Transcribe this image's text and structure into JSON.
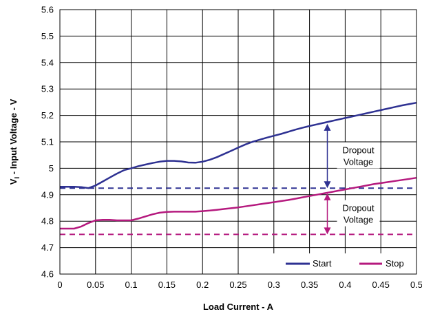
{
  "chart_data": {
    "type": "line",
    "xlabel": "Load Current - A",
    "ylabel_main": "V",
    "ylabel_sub": "I",
    "ylabel_rest": " - Input Voltage - V",
    "xlim": [
      0,
      0.5
    ],
    "ylim": [
      4.6,
      5.6
    ],
    "x_ticks": [
      "0",
      "0.05",
      "0.1",
      "0.15",
      "0.2",
      "0.25",
      "0.3",
      "0.35",
      "0.4",
      "0.45",
      "0.5"
    ],
    "y_ticks": [
      "4.6",
      "4.7",
      "4.8",
      "4.9",
      "5",
      "5.1",
      "5.2",
      "5.3",
      "5.4",
      "5.5",
      "5.6"
    ],
    "grid": true,
    "legend_position": "bottom-right",
    "series": [
      {
        "name": "Start",
        "color": "#2e3192",
        "x": [
          0,
          0.01,
          0.02,
          0.03,
          0.04,
          0.05,
          0.06,
          0.07,
          0.08,
          0.09,
          0.1,
          0.11,
          0.12,
          0.13,
          0.14,
          0.15,
          0.16,
          0.17,
          0.18,
          0.19,
          0.2,
          0.21,
          0.22,
          0.23,
          0.24,
          0.25,
          0.26,
          0.27,
          0.28,
          0.29,
          0.3,
          0.31,
          0.32,
          0.33,
          0.34,
          0.35,
          0.36,
          0.37,
          0.38,
          0.39,
          0.4,
          0.41,
          0.42,
          0.43,
          0.44,
          0.45,
          0.46,
          0.47,
          0.48,
          0.49,
          0.5
        ],
        "values": [
          4.93,
          4.93,
          4.93,
          4.929,
          4.925,
          4.935,
          4.95,
          4.965,
          4.98,
          4.993,
          5.0,
          5.008,
          5.014,
          5.02,
          5.025,
          5.028,
          5.028,
          5.026,
          5.022,
          5.021,
          5.025,
          5.032,
          5.042,
          5.054,
          5.066,
          5.078,
          5.09,
          5.1,
          5.108,
          5.116,
          5.123,
          5.13,
          5.138,
          5.146,
          5.153,
          5.16,
          5.166,
          5.172,
          5.178,
          5.184,
          5.19,
          5.196,
          5.202,
          5.208,
          5.214,
          5.22,
          5.226,
          5.232,
          5.238,
          5.243,
          5.248
        ]
      },
      {
        "name": "Stop",
        "color": "#b5197e",
        "x": [
          0,
          0.01,
          0.02,
          0.03,
          0.04,
          0.05,
          0.06,
          0.07,
          0.08,
          0.09,
          0.1,
          0.11,
          0.12,
          0.13,
          0.14,
          0.15,
          0.16,
          0.17,
          0.18,
          0.19,
          0.2,
          0.21,
          0.22,
          0.23,
          0.24,
          0.25,
          0.26,
          0.27,
          0.28,
          0.29,
          0.3,
          0.31,
          0.32,
          0.33,
          0.34,
          0.35,
          0.36,
          0.37,
          0.38,
          0.39,
          0.4,
          0.41,
          0.42,
          0.43,
          0.44,
          0.45,
          0.46,
          0.47,
          0.48,
          0.49,
          0.5
        ],
        "values": [
          4.772,
          4.772,
          4.772,
          4.78,
          4.793,
          4.803,
          4.805,
          4.805,
          4.803,
          4.803,
          4.803,
          4.81,
          4.818,
          4.826,
          4.832,
          4.835,
          4.836,
          4.836,
          4.836,
          4.836,
          4.838,
          4.84,
          4.843,
          4.846,
          4.849,
          4.852,
          4.856,
          4.86,
          4.864,
          4.868,
          4.872,
          4.876,
          4.88,
          4.885,
          4.89,
          4.895,
          4.9,
          4.905,
          4.91,
          4.915,
          4.92,
          4.925,
          4.93,
          4.935,
          4.94,
          4.944,
          4.948,
          4.952,
          4.956,
          4.96,
          4.964
        ]
      }
    ],
    "reference_lines": [
      {
        "y": 4.925,
        "color": "#2e3192",
        "style": "dashed"
      },
      {
        "y": 4.75,
        "color": "#b5197e",
        "style": "dashed"
      }
    ],
    "annotations": [
      {
        "text_line1": "Dropout",
        "text_line2": "Voltage",
        "x": 0.375,
        "y_top": 5.168,
        "y_bottom": 4.925,
        "color": "#2e3192"
      },
      {
        "text_line1": "Dropout",
        "text_line2": "Voltage",
        "x": 0.375,
        "y_top": 4.905,
        "y_bottom": 4.75,
        "color": "#b5197e"
      }
    ]
  }
}
